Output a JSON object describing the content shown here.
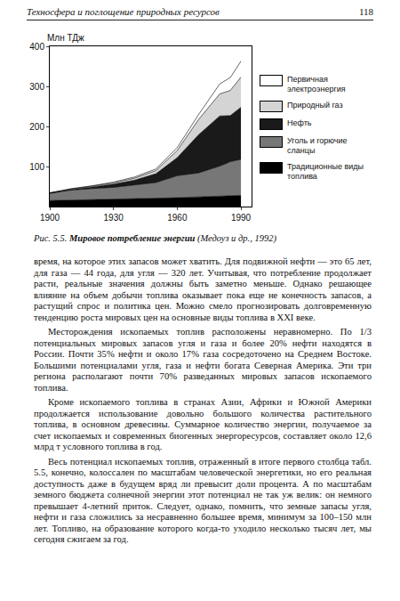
{
  "header": {
    "title": "Техносфера и поглощение природных ресурсов",
    "page": "118"
  },
  "chart_data": {
    "type": "area",
    "stacked": true,
    "ylabel": "Млн ТДж",
    "x": [
      1900,
      1910,
      1920,
      1930,
      1940,
      1950,
      1960,
      1970,
      1980,
      1985,
      1990
    ],
    "xlim": [
      1900,
      1995
    ],
    "xticks": [
      1900,
      1930,
      1960,
      1990
    ],
    "ylim": [
      0,
      400
    ],
    "yticks": [
      100,
      200,
      300,
      400
    ],
    "grid": false,
    "series": [
      {
        "name": "Первичная электроэнергия",
        "color": "#ffffff",
        "values": [
          0,
          0.5,
          1,
          2,
          3,
          4,
          7,
          12,
          25,
          32,
          40
        ]
      },
      {
        "name": "Природный газ",
        "color": "#d4d4d4",
        "values": [
          0,
          1,
          2,
          3,
          5,
          8,
          18,
          38,
          55,
          63,
          75
        ]
      },
      {
        "name": "Нефть",
        "color": "#1a1a1a",
        "values": [
          1,
          2,
          4,
          8,
          12,
          22,
          45,
          95,
          125,
          115,
          130
        ]
      },
      {
        "name": "Уголь и горючие сланцы",
        "color": "#777777",
        "values": [
          18,
          25,
          28,
          30,
          35,
          40,
          55,
          60,
          75,
          85,
          90
        ]
      },
      {
        "name": "Традиционные виды топлива",
        "color": "#000000",
        "values": [
          15,
          16,
          17,
          18,
          19,
          20,
          22,
          24,
          26,
          27,
          28
        ]
      }
    ]
  },
  "caption": {
    "label": "Рис. 5.5.",
    "title": "Мировое потребление энергии",
    "source": "(Медоуз и др., 1992)"
  },
  "paragraphs": [
    "время, на которое этих запасов может хватить. Для подвижной нефти — это 65 лет, для газа — 44 года, для угля — 320 лет. Учитывая, что потребление продолжает расти, реальные значения должны быть заметно меньше. Однако решающее влияние на объем добычи топлива оказывает пока еще не конечность запасов, а растущий спрос и политика цен. Можно смело прогнозировать долговременную тенденцию роста мировых цен на основные виды топлива в XXI веке.",
    "Месторождения ископаемых топлив расположены неравномерно. По 1/3 потенциальных мировых запасов угля и газа и более 20% нефти находятся в России. Почти 35% нефти и около 17% газа сосредоточено на Среднем Востоке. Большими потенциалами угля, газа и нефти богата Северная Америка. Эти три региона располагают почти 70% разведанных мировых запасов ископаемого топлива.",
    "Кроме ископаемого топлива в странах Азии, Африки и Южной Америки продолжается использование довольно большого количества растительного топлива, в основном древесины. Суммарное количество энергии, получаемое за счет ископаемых и современных биогенных энергоресурсов, составляет около 12,6 млрд т условного топлива в год.",
    "Весь потенциал ископаемых топлив, отраженный в итоге первого столбца табл. 5.5, конечно, колоссален по масштабам человеческой энергетики, но его реальная доступность даже в будущем вряд ли превысит доли процента. А по масштабам земного бюджета солнечной энергии этот потенциал не так уж велик: он немного превышает 4-летний приток. Следует, однако, помнить, что земные запасы угля, нефти и газа сложились за несравненно большее время, минимум за 100–150 млн лет. Топливо, на образование которого когда-то уходило несколько тысяч лет, мы сегодня сжигаем за год."
  ]
}
